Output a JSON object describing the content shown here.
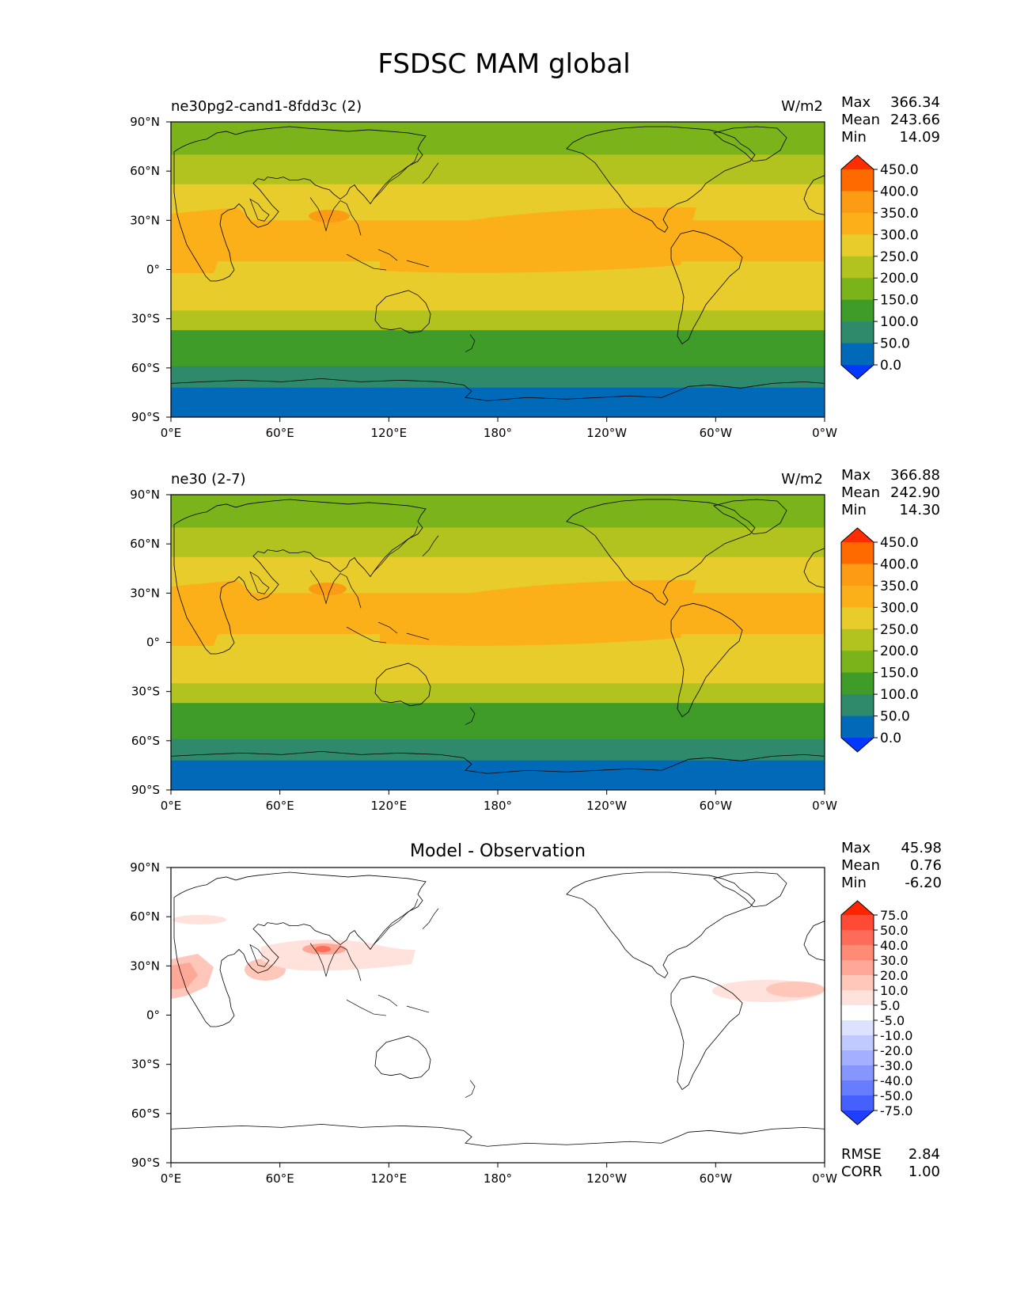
{
  "figure": {
    "title": "FSDSC MAM global"
  },
  "chart_data": [
    {
      "type": "heatmap",
      "panel": "test",
      "title": "ne30pg2-cand1-8fdd3c (2)",
      "units": "W/m2",
      "stats": {
        "max_label": "Max",
        "max": "366.34",
        "mean_label": "Mean",
        "mean": "243.66",
        "min_label": "Min",
        "min": "14.09"
      },
      "xticks": [
        "0°E",
        "60°E",
        "120°E",
        "180°",
        "120°W",
        "60°W",
        "0°W"
      ],
      "yticks": [
        "90°N",
        "60°N",
        "30°N",
        "0°",
        "30°S",
        "60°S",
        "90°S"
      ],
      "xlim": [
        0,
        360
      ],
      "ylim": [
        -90,
        90
      ],
      "colorbar_levels": [
        "450.0",
        "400.0",
        "350.0",
        "300.0",
        "250.0",
        "200.0",
        "150.0",
        "100.0",
        "50.0",
        "0.0"
      ],
      "colorbar_colors": [
        "#ff2d00",
        "#ff6a00",
        "#fb9c14",
        "#fbb019",
        "#e8cc2b",
        "#b2c21e",
        "#7ab31a",
        "#3f9c28",
        "#2e8a6a",
        "#0069b8",
        "#0038ff"
      ],
      "zonal_bands": [
        {
          "lat_top": 90,
          "lat_bottom": 70,
          "value": 175
        },
        {
          "lat_top": 70,
          "lat_bottom": 52,
          "value": 225
        },
        {
          "lat_top": 52,
          "lat_bottom": 40,
          "value": 275
        },
        {
          "lat_top": 40,
          "lat_bottom": 30,
          "value": 275
        },
        {
          "lat_top": 30,
          "lat_bottom": 5,
          "value": 325
        },
        {
          "lat_top": 5,
          "lat_bottom": -25,
          "value": 275
        },
        {
          "lat_top": -25,
          "lat_bottom": -37,
          "value": 225
        },
        {
          "lat_top": -37,
          "lat_bottom": -48,
          "value": 125
        },
        {
          "lat_top": -48,
          "lat_bottom": -59,
          "value": 125
        },
        {
          "lat_top": -59,
          "lat_bottom": -72,
          "value": 75
        },
        {
          "lat_top": -72,
          "lat_bottom": -90,
          "value": 25
        }
      ]
    },
    {
      "type": "heatmap",
      "panel": "reference",
      "title": "ne30 (2-7)",
      "units": "W/m2",
      "stats": {
        "max_label": "Max",
        "max": "366.88",
        "mean_label": "Mean",
        "mean": "242.90",
        "min_label": "Min",
        "min": "14.30"
      },
      "xticks": [
        "0°E",
        "60°E",
        "120°E",
        "180°",
        "120°W",
        "60°W",
        "0°W"
      ],
      "yticks": [
        "90°N",
        "60°N",
        "30°N",
        "0°",
        "30°S",
        "60°S",
        "90°S"
      ],
      "xlim": [
        0,
        360
      ],
      "ylim": [
        -90,
        90
      ],
      "colorbar_levels": [
        "450.0",
        "400.0",
        "350.0",
        "300.0",
        "250.0",
        "200.0",
        "150.0",
        "100.0",
        "50.0",
        "0.0"
      ],
      "colorbar_colors": [
        "#ff2d00",
        "#ff6a00",
        "#fb9c14",
        "#fbb019",
        "#e8cc2b",
        "#b2c21e",
        "#7ab31a",
        "#3f9c28",
        "#2e8a6a",
        "#0069b8",
        "#0038ff"
      ],
      "zonal_bands": [
        {
          "lat_top": 90,
          "lat_bottom": 70,
          "value": 175
        },
        {
          "lat_top": 70,
          "lat_bottom": 52,
          "value": 225
        },
        {
          "lat_top": 52,
          "lat_bottom": 40,
          "value": 275
        },
        {
          "lat_top": 40,
          "lat_bottom": 30,
          "value": 275
        },
        {
          "lat_top": 30,
          "lat_bottom": 5,
          "value": 325
        },
        {
          "lat_top": 5,
          "lat_bottom": -25,
          "value": 275
        },
        {
          "lat_top": -25,
          "lat_bottom": -37,
          "value": 225
        },
        {
          "lat_top": -37,
          "lat_bottom": -48,
          "value": 125
        },
        {
          "lat_top": -48,
          "lat_bottom": -59,
          "value": 125
        },
        {
          "lat_top": -59,
          "lat_bottom": -72,
          "value": 75
        },
        {
          "lat_top": -72,
          "lat_bottom": -90,
          "value": 25
        }
      ]
    },
    {
      "type": "heatmap",
      "panel": "difference",
      "title": "Model - Observation",
      "stats": {
        "max_label": "Max",
        "max": "45.98",
        "mean_label": "Mean",
        "mean": "0.76",
        "min_label": "Min",
        "min": "-6.20"
      },
      "metrics": {
        "rmse_label": "RMSE",
        "rmse": "2.84",
        "corr_label": "CORR",
        "corr": "1.00"
      },
      "xticks": [
        "0°E",
        "60°E",
        "120°E",
        "180°",
        "120°W",
        "60°W",
        "0°W"
      ],
      "yticks": [
        "90°N",
        "60°N",
        "30°N",
        "0°",
        "30°S",
        "60°S",
        "90°S"
      ],
      "xlim": [
        0,
        360
      ],
      "ylim": [
        -90,
        90
      ],
      "colorbar_levels": [
        "75.0",
        "50.0",
        "40.0",
        "30.0",
        "20.0",
        "10.0",
        "5.0",
        "-5.0",
        "-10.0",
        "-20.0",
        "-30.0",
        "-40.0",
        "-50.0",
        "-75.0"
      ],
      "colorbar_colors": [
        "#ff2400",
        "#ff4a36",
        "#ff6d5a",
        "#ff8a76",
        "#ffa898",
        "#ffc6ba",
        "#ffe2dc",
        "#ffffff",
        "#dde3ff",
        "#c0caff",
        "#a2b0ff",
        "#8597ff",
        "#677dff",
        "#4560ff",
        "#1f3fff"
      ]
    }
  ]
}
